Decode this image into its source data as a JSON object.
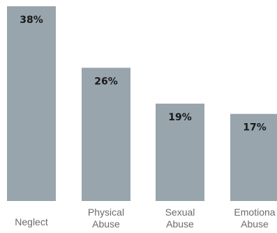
{
  "chart_data": {
    "type": "bar",
    "categories": [
      [
        "Neglect"
      ],
      [
        "Physical",
        "Abuse"
      ],
      [
        "Sexual",
        "Abuse"
      ],
      [
        "Emotiona",
        "Abuse"
      ]
    ],
    "values": [
      38,
      26,
      19,
      17
    ],
    "value_labels": [
      "38%",
      "26%",
      "19%",
      "17%"
    ],
    "title": "",
    "xlabel": "",
    "ylabel": "",
    "ylim": [
      0,
      38
    ],
    "grid": false,
    "legend": "none",
    "bar_color": "#98a5ad",
    "label_color": "#6b6b6b",
    "value_color": "#1a1a1a"
  }
}
